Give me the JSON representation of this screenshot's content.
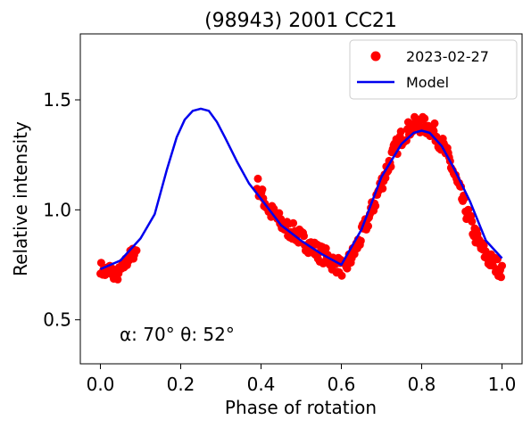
{
  "chart_data": {
    "type": "scatter",
    "title": "(98943) 2001 CC21",
    "xlabel": "Phase of rotation",
    "ylabel": "Relative intensity",
    "xlim": [
      -0.05,
      1.05
    ],
    "ylim": [
      0.3,
      1.8
    ],
    "xticks": [
      0.0,
      0.2,
      0.4,
      0.6,
      0.8,
      1.0
    ],
    "xtick_labels": [
      "0.0",
      "0.2",
      "0.4",
      "0.6",
      "0.8",
      "1.0"
    ],
    "yticks": [
      0.5,
      1.0,
      1.5
    ],
    "ytick_labels": [
      "0.5",
      "1.0",
      "1.5"
    ],
    "grid": false,
    "legend_position": "top-right",
    "annotation": "α: 70° θ: 52°",
    "series": [
      {
        "name": "2023-02-27",
        "kind": "scatter",
        "color": "#ff0000",
        "segments": [
          {
            "x": [
              0.0,
              0.01,
              0.02,
              0.03,
              0.04,
              0.05,
              0.06,
              0.07,
              0.08,
              0.09
            ],
            "y": [
              0.74,
              0.71,
              0.73,
              0.72,
              0.7,
              0.72,
              0.75,
              0.78,
              0.8,
              0.82
            ],
            "spread": 0.03
          },
          {
            "x": [
              0.39,
              0.4,
              0.42,
              0.44,
              0.46,
              0.48,
              0.5,
              0.52,
              0.54,
              0.56,
              0.58,
              0.6,
              0.61
            ],
            "y": [
              1.12,
              1.07,
              1.0,
              0.96,
              0.92,
              0.9,
              0.87,
              0.84,
              0.81,
              0.79,
              0.76,
              0.74,
              0.72
            ],
            "spread": 0.04
          },
          {
            "x": [
              0.61,
              0.63,
              0.65,
              0.67,
              0.69,
              0.71,
              0.73,
              0.75,
              0.77,
              0.79,
              0.81,
              0.83,
              0.85,
              0.87,
              0.89,
              0.91,
              0.93,
              0.95,
              0.97,
              0.99,
              1.0
            ],
            "y": [
              0.74,
              0.8,
              0.88,
              0.97,
              1.07,
              1.17,
              1.26,
              1.33,
              1.37,
              1.39,
              1.38,
              1.36,
              1.3,
              1.22,
              1.11,
              1.0,
              0.9,
              0.82,
              0.77,
              0.74,
              0.73
            ],
            "spread": 0.04
          }
        ]
      },
      {
        "name": "Model",
        "kind": "line",
        "color": "#0000ee",
        "x": [
          0.0,
          0.05,
          0.1,
          0.135,
          0.165,
          0.19,
          0.21,
          0.23,
          0.25,
          0.27,
          0.29,
          0.31,
          0.34,
          0.37,
          0.4,
          0.45,
          0.5,
          0.55,
          0.6,
          0.65,
          0.7,
          0.75,
          0.78,
          0.8,
          0.82,
          0.85,
          0.88,
          0.92,
          0.96,
          1.0
        ],
        "y": [
          0.73,
          0.77,
          0.87,
          0.98,
          1.18,
          1.33,
          1.41,
          1.45,
          1.46,
          1.45,
          1.4,
          1.33,
          1.22,
          1.12,
          1.05,
          0.93,
          0.86,
          0.8,
          0.75,
          0.91,
          1.15,
          1.3,
          1.35,
          1.36,
          1.35,
          1.29,
          1.19,
          1.04,
          0.86,
          0.78
        ]
      }
    ]
  }
}
